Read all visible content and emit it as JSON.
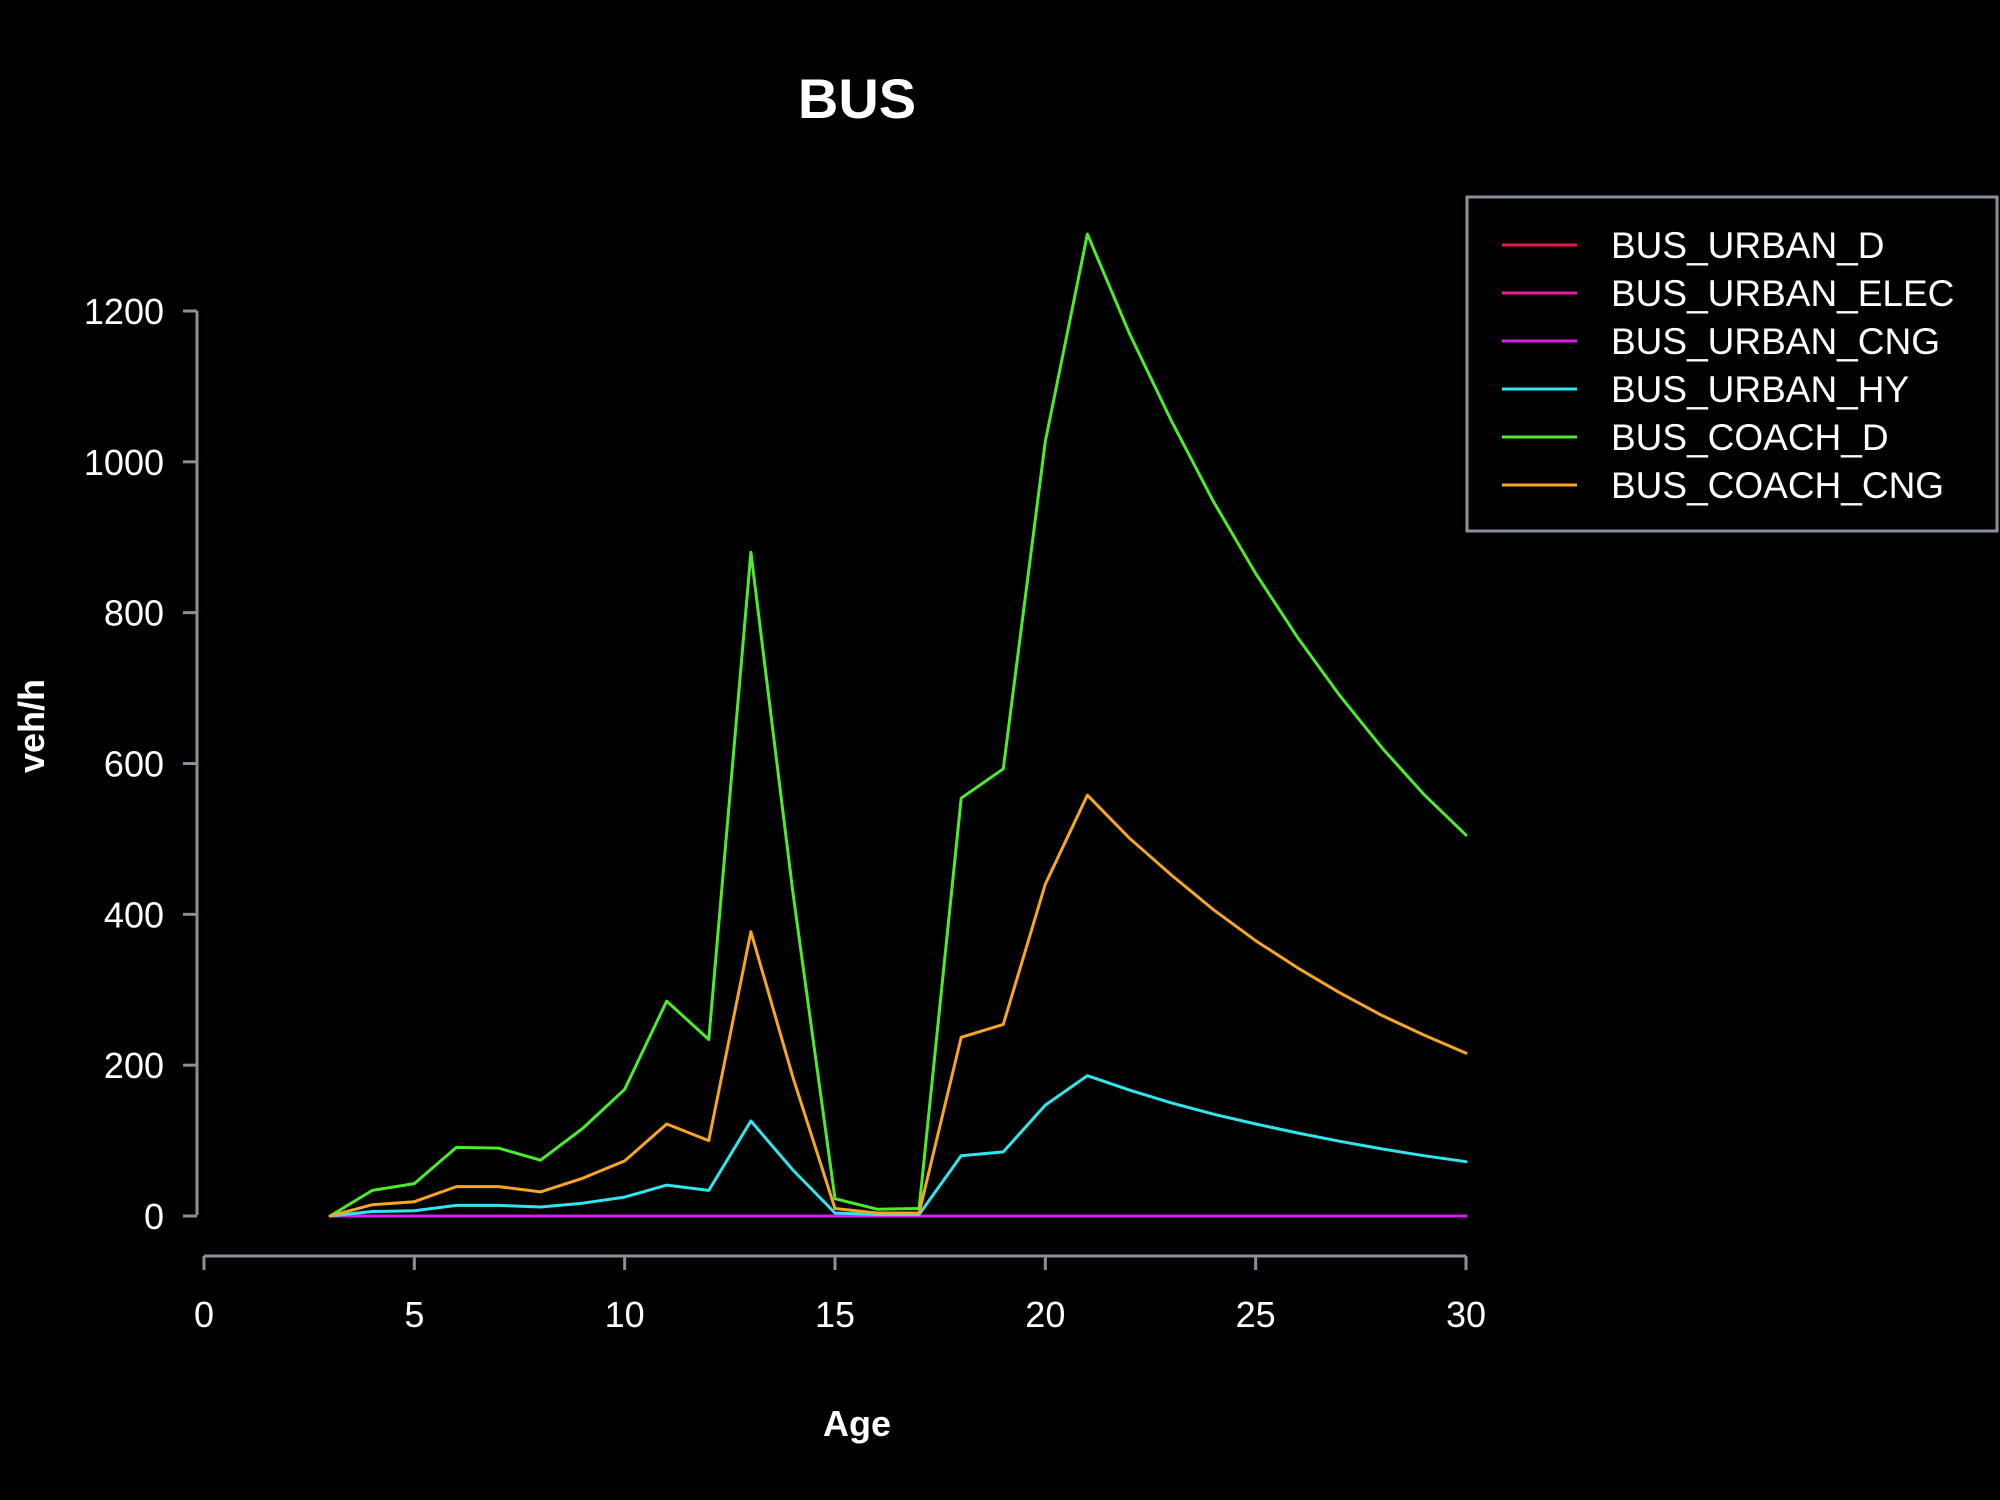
{
  "chart_data": {
    "type": "line",
    "title": "BUS",
    "xlabel": "Age",
    "ylabel": "veh/h",
    "xlim": [
      0,
      30
    ],
    "ylim": [
      0,
      1300
    ],
    "xticks": [
      0,
      5,
      10,
      15,
      20,
      25,
      30
    ],
    "yticks": [
      0,
      200,
      400,
      600,
      800,
      1000,
      1200
    ],
    "grid": false,
    "legend_position": "top-right",
    "x": [
      3,
      4,
      5,
      6,
      7,
      8,
      9,
      10,
      11,
      12,
      13,
      14,
      15,
      16,
      17,
      18,
      19,
      20,
      21,
      22,
      23,
      24,
      25,
      26,
      27,
      28,
      29,
      30
    ],
    "series": [
      {
        "name": "BUS_URBAN_D",
        "color": "#e8174a",
        "values": [
          0,
          0,
          0,
          0,
          0,
          0,
          0,
          0,
          0,
          0,
          0,
          0,
          0,
          0,
          0,
          0,
          0,
          0,
          0,
          0,
          0,
          0,
          0,
          0,
          0,
          0,
          0,
          0
        ]
      },
      {
        "name": "BUS_URBAN_ELEC",
        "color": "#e61ea0",
        "values": [
          0,
          0,
          0,
          0,
          0,
          0,
          0,
          0,
          0,
          0,
          0,
          0,
          0,
          0,
          0,
          0,
          0,
          0,
          0,
          0,
          0,
          0,
          0,
          0,
          0,
          0,
          0,
          0
        ]
      },
      {
        "name": "BUS_URBAN_CNG",
        "color": "#d61ee8",
        "values": [
          0,
          0,
          0,
          0,
          0,
          0,
          0,
          0,
          0,
          0,
          0,
          0,
          0,
          0,
          0,
          0,
          0,
          0,
          0,
          0,
          0,
          0,
          0,
          0,
          0,
          0,
          0,
          0
        ]
      },
      {
        "name": "BUS_URBAN_HY",
        "color": "#2fe6f0",
        "values": [
          0,
          6,
          7,
          14,
          14,
          12,
          17,
          25,
          41,
          34,
          126,
          61,
          4,
          2,
          2,
          80,
          85,
          147,
          186,
          167,
          150,
          135,
          122,
          110,
          99,
          89,
          80,
          72
        ]
      },
      {
        "name": "BUS_COACH_D",
        "color": "#4cec2a",
        "values": [
          0,
          34,
          43,
          91,
          90,
          74,
          116,
          168,
          285,
          234,
          880,
          429,
          23,
          9,
          10,
          554,
          593,
          1027,
          1302,
          1170,
          1054,
          947,
          852,
          767,
          690,
          621,
          559,
          505
        ]
      },
      {
        "name": "BUS_COACH_CNG",
        "color": "#f5a623",
        "values": [
          0,
          15,
          19,
          39,
          39,
          32,
          50,
          73,
          122,
          100,
          377,
          184,
          10,
          4,
          4,
          237,
          254,
          440,
          558,
          501,
          452,
          406,
          365,
          329,
          296,
          266,
          240,
          216
        ]
      }
    ]
  }
}
